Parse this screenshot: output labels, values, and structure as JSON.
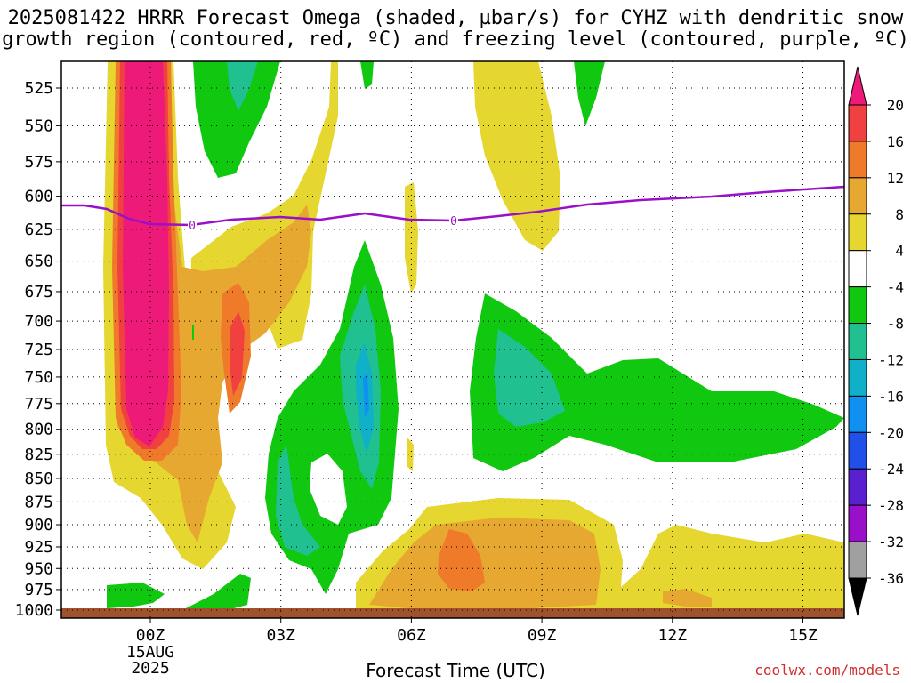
{
  "chart_data": {
    "type": "heatmap",
    "title_line1": "2025081422 HRRR Forecast Omega (shaded, µbar/s) for CYHZ with dendritic snow",
    "title_line2": "growth region (contoured, red, ºC) and freezing level (contoured, purple, ºC)",
    "xlabel": "Forecast Time (UTC)",
    "credit": "coolwx.com/models",
    "y_ticks": [
      "525",
      "550",
      "575",
      "600",
      "625",
      "650",
      "675",
      "700",
      "725",
      "750",
      "775",
      "800",
      "825",
      "850",
      "875",
      "900",
      "925",
      "950",
      "975",
      "1000"
    ],
    "x_ticks": [
      "00Z",
      "03Z",
      "06Z",
      "09Z",
      "12Z",
      "15Z"
    ],
    "x_date_line1": "15AUG",
    "x_date_line2": "2025",
    "colorbar_levels": [
      "20",
      "16",
      "12",
      "8",
      "4",
      "-4",
      "-8",
      "-12",
      "-16",
      "-20",
      "-24",
      "-28",
      "-32",
      "-36"
    ],
    "colorbar_colors": [
      "#ee1a7a",
      "#f04040",
      "#ee7a2a",
      "#e6a830",
      "#e6d630",
      "#ffffff",
      "#10c810",
      "#20c090",
      "#10b0c8",
      "#1090f0",
      "#2050e8",
      "#5a20d0",
      "#9a10c8",
      "#a0a0a0",
      "#000000"
    ],
    "freezing_level_labels": [
      "0",
      "0"
    ],
    "freezing_level_color": "#9a10c8",
    "ground_color": "#a0522d"
  }
}
